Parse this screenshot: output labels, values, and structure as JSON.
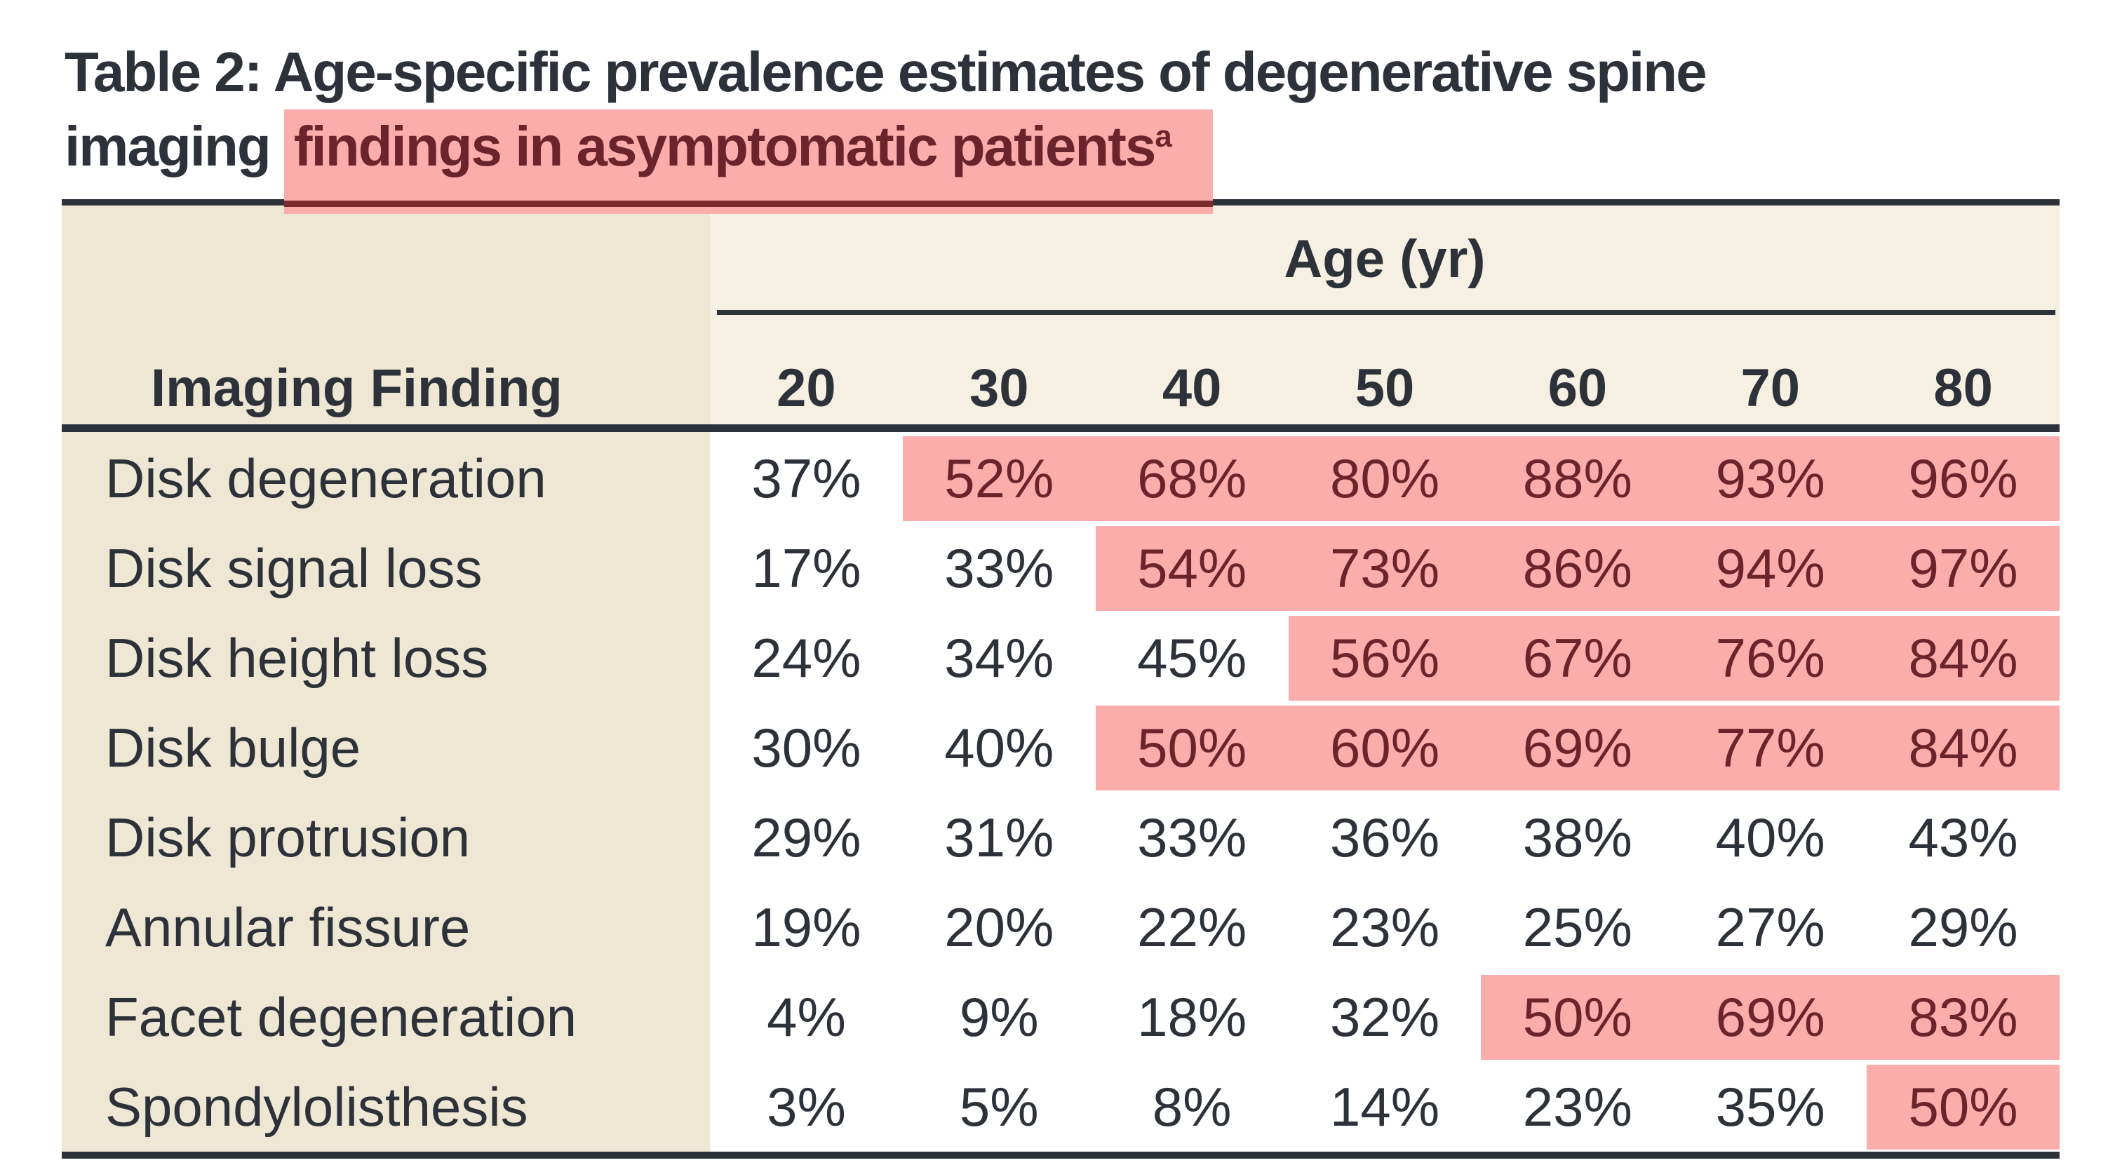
{
  "title": {
    "line1": "Table 2: Age-specific prevalence estimates of degenerative spine",
    "line2_plain": "imaging ",
    "line2_highlighted": "findings in asymptomatic patients",
    "footnote_marker": "a"
  },
  "table": {
    "column_group_label": "Age (yr)",
    "row_header": "Imaging Finding",
    "age_columns": [
      "20",
      "30",
      "40",
      "50",
      "60",
      "70",
      "80"
    ],
    "rows": [
      {
        "label": "Disk degeneration",
        "values": [
          "37%",
          "52%",
          "68%",
          "80%",
          "88%",
          "93%",
          "96%"
        ],
        "highlight_from_col": 1
      },
      {
        "label": "Disk signal loss",
        "values": [
          "17%",
          "33%",
          "54%",
          "73%",
          "86%",
          "94%",
          "97%"
        ],
        "highlight_from_col": 2
      },
      {
        "label": "Disk height loss",
        "values": [
          "24%",
          "34%",
          "45%",
          "56%",
          "67%",
          "76%",
          "84%"
        ],
        "highlight_from_col": 3
      },
      {
        "label": "Disk bulge",
        "values": [
          "30%",
          "40%",
          "50%",
          "60%",
          "69%",
          "77%",
          "84%"
        ],
        "highlight_from_col": 2
      },
      {
        "label": "Disk protrusion",
        "values": [
          "29%",
          "31%",
          "33%",
          "36%",
          "38%",
          "40%",
          "43%"
        ],
        "highlight_from_col": null
      },
      {
        "label": "Annular fissure",
        "values": [
          "19%",
          "20%",
          "22%",
          "23%",
          "25%",
          "27%",
          "29%"
        ],
        "highlight_from_col": null
      },
      {
        "label": "Facet degeneration",
        "values": [
          "4%",
          "9%",
          "18%",
          "32%",
          "50%",
          "69%",
          "83%"
        ],
        "highlight_from_col": 4
      },
      {
        "label": "Spondylolisthesis",
        "values": [
          "3%",
          "5%",
          "8%",
          "14%",
          "23%",
          "35%",
          "50%"
        ],
        "highlight_from_col": 6
      }
    ]
  },
  "colors": {
    "ink": "#2d3139",
    "highlight_pink": "#fbadab",
    "highlight_text_maroon": "#6b242b",
    "rule_maroon_segment": "#7d2a2f",
    "left_column_beige": "#ede7d4",
    "header_band_cream": "#f5f0e1"
  }
}
